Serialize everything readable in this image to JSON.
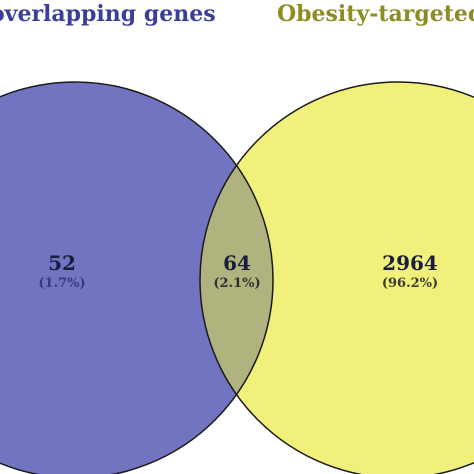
{
  "colors": {
    "set_left_fill": "#7274c2",
    "set_right_fill": "#f0f07a",
    "overlap_fill": "#b1b37f",
    "outline": "#1a1a1a",
    "label_left": "#3a3f9a",
    "label_right": "#8c8e24",
    "count_text": "#1b1d3c",
    "pct_left": "#34397a",
    "pct_mid": "#2f2f2f",
    "pct_right": "#3b3b30"
  },
  "sets": {
    "left": {
      "label": "overlapping genes"
    },
    "right": {
      "label": "Obesity-targeted"
    }
  },
  "regions": {
    "left_only": {
      "count": "52",
      "percent": "(1.7%)"
    },
    "overlap": {
      "count": "64",
      "percent": "(2.1%)"
    },
    "right_only": {
      "count": "2964",
      "percent": "(96.2%)"
    }
  }
}
